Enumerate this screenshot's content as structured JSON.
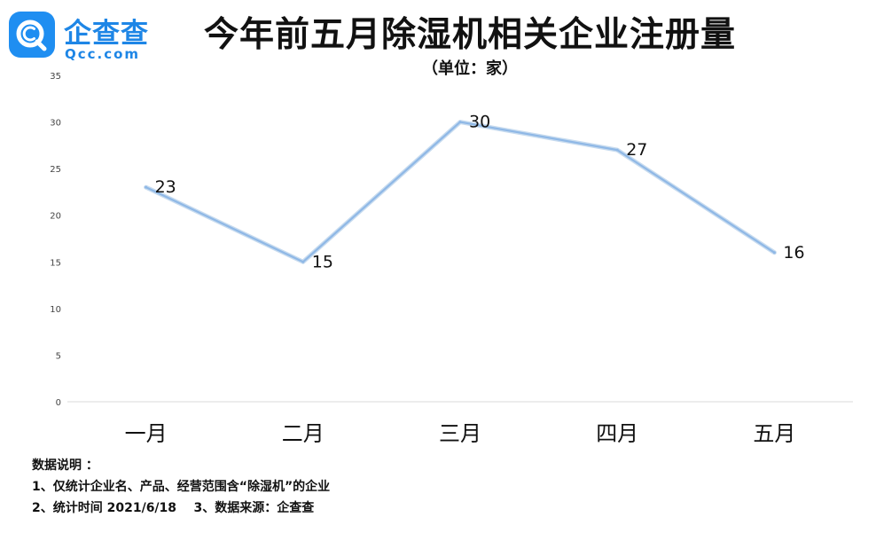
{
  "logo": {
    "name_cn": "企查查",
    "name_en": "Qcc.com",
    "brand_color": "#1f8ef1",
    "icon": "qcc-logo-icon"
  },
  "header": {
    "title": "今年前五月除湿机相关企业注册量",
    "unit": "（单位：家）"
  },
  "chart_data": {
    "type": "line",
    "categories": [
      "一月",
      "二月",
      "三月",
      "四月",
      "五月"
    ],
    "series": [
      {
        "values": [
          23,
          15,
          30,
          27,
          16
        ],
        "color": "#8fb8e6"
      }
    ],
    "data_labels": [
      "23",
      "15",
      "30",
      "27",
      "16"
    ],
    "y_ticks": [
      "0",
      "5",
      "10",
      "15",
      "20",
      "25",
      "30",
      "35"
    ],
    "ylim": [
      0,
      35
    ],
    "grid": false,
    "legend": "none"
  },
  "notes": {
    "heading": "数据说明 ：",
    "line1": "1、仅统计企业名、产品、经营范围含“除湿机”的企业",
    "line2": "2、统计时间 2021/6/18    3、数据来源：企查查"
  }
}
